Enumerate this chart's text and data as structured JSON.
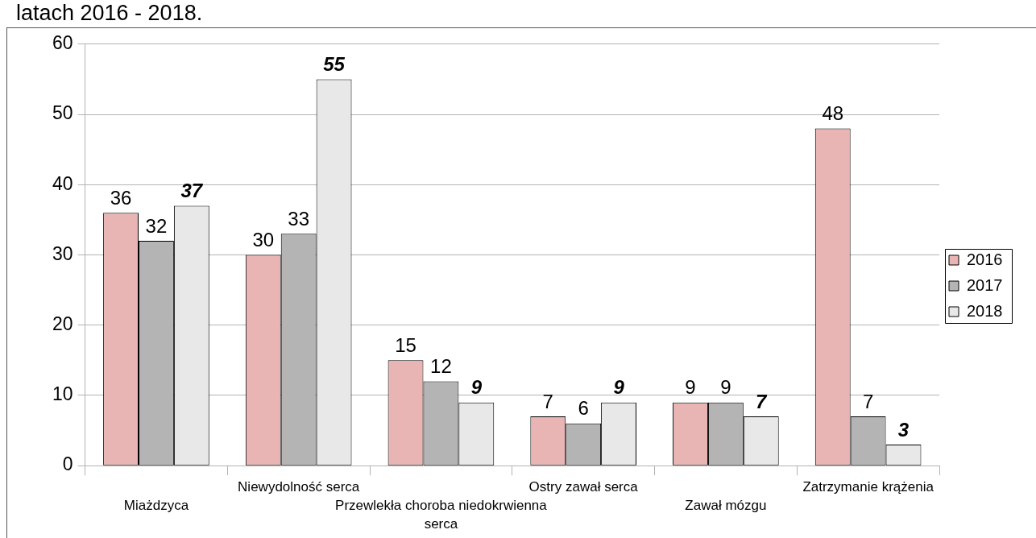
{
  "chart_data": {
    "type": "bar",
    "title": "latach 2016 - 2018.",
    "categories": [
      "Miażdzyca",
      "Niewydolność serca",
      "Przewlekła choroba niedokrwienna serca",
      "Ostry zawał serca",
      "Zawał mózgu",
      "Zatrzymanie krążenia"
    ],
    "series": [
      {
        "name": "2016",
        "color": "#e8b4b4",
        "values": [
          36,
          30,
          15,
          7,
          9,
          48
        ]
      },
      {
        "name": "2017",
        "color": "#b4b4b4",
        "values": [
          32,
          33,
          12,
          6,
          9,
          7
        ]
      },
      {
        "name": "2018",
        "color": "#e8e8e8",
        "values": [
          37,
          55,
          9,
          9,
          7,
          3
        ]
      }
    ],
    "ylim": [
      0,
      60
    ],
    "yticks": [
      0,
      10,
      20,
      30,
      40,
      50,
      60
    ],
    "grid": "y",
    "legend": "right",
    "data_labels": true
  }
}
